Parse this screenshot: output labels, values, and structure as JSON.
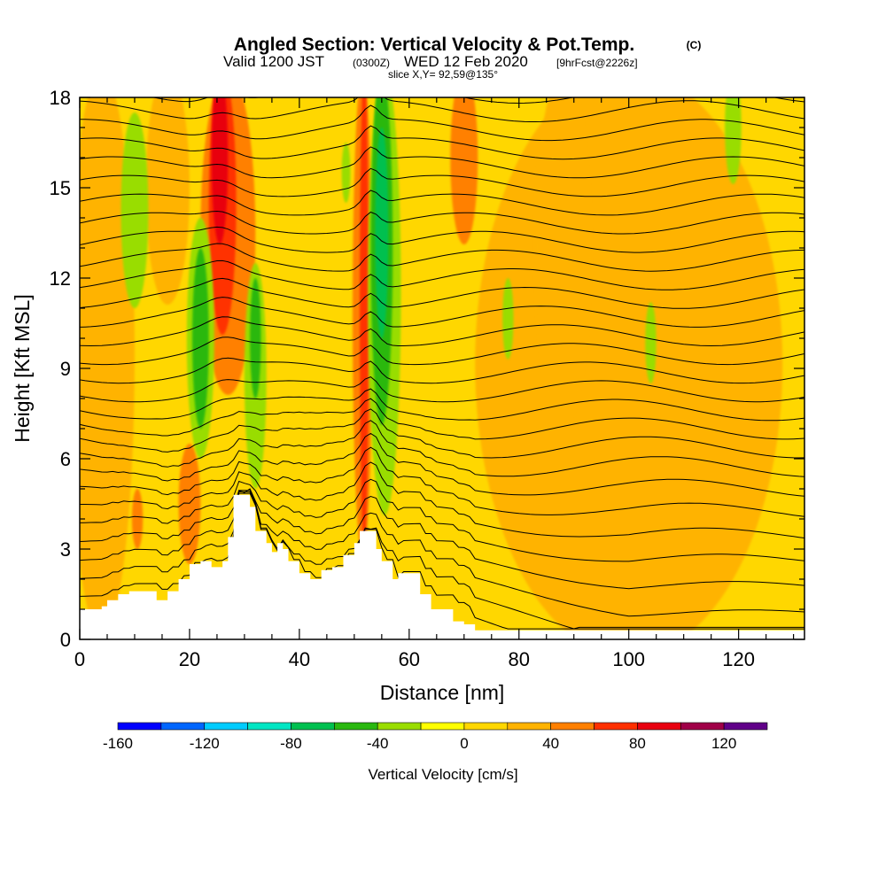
{
  "title": {
    "line1": "Angled Section: Vertical Velocity & Pot.Temp.",
    "copyright": "(C)",
    "line2_a": "Valid 1200 JST",
    "line2_b": "(0300Z)",
    "line2_c": "WED 12 Feb 2020",
    "line2_d": "[9hrFcst@2226z]",
    "line3": "slice X,Y= 92,59@135°"
  },
  "chart_data": {
    "type": "heatmap",
    "title": "Angled Section: Vertical Velocity & Pot.Temp.",
    "xlabel": "Distance [nm]",
    "ylabel": "Height [Kft MSL]",
    "xlim": [
      0,
      132
    ],
    "ylim": [
      0,
      18
    ],
    "x_ticks": [
      0,
      20,
      40,
      60,
      80,
      100,
      120
    ],
    "x_tick_labels": [
      "0",
      "20",
      "40",
      "60",
      "80",
      "100",
      "120"
    ],
    "y_ticks": [
      0,
      3,
      6,
      9,
      12,
      15,
      18
    ],
    "y_tick_labels": [
      "0",
      "3",
      "6",
      "9",
      "12",
      "15",
      "18"
    ],
    "background_value": 10,
    "vertical_velocity_features": [
      {
        "x": 100,
        "zmin": 0.3,
        "zmax": 18,
        "halfwidth": 28,
        "value": 30
      },
      {
        "x": 88,
        "zmin": 8,
        "zmax": 18,
        "halfwidth": 5,
        "value": 30
      },
      {
        "x": 4,
        "zmin": 1,
        "zmax": 18,
        "halfwidth": 6,
        "value": 30
      },
      {
        "x": 16,
        "zmin": 12,
        "zmax": 18,
        "halfwidth": 4,
        "value": 30
      },
      {
        "x": 27,
        "zmin": 9,
        "zmax": 18,
        "halfwidth": 5,
        "value": 50
      },
      {
        "x": 26,
        "zmin": 11,
        "zmax": 18,
        "halfwidth": 2.5,
        "value": 70
      },
      {
        "x": 25.5,
        "zmin": 14,
        "zmax": 18,
        "halfwidth": 1.5,
        "value": 90
      },
      {
        "x": 70,
        "zmin": 14,
        "zmax": 18,
        "halfwidth": 2.5,
        "value": 50
      },
      {
        "x": 20,
        "zmin": 2.5,
        "zmax": 6.5,
        "halfwidth": 2,
        "value": 50
      },
      {
        "x": 10.5,
        "zmin": 3,
        "zmax": 5,
        "halfwidth": 1,
        "value": 50
      },
      {
        "x": 51.5,
        "zmin": 3.6,
        "zmax": 18,
        "halfwidth": 1.8,
        "value": 50
      },
      {
        "x": 51.8,
        "zmin": 4,
        "zmax": 18,
        "halfwidth": 0.8,
        "value": 70
      },
      {
        "x": 10,
        "zmin": 11,
        "zmax": 17.5,
        "halfwidth": 2.5,
        "value": -30
      },
      {
        "x": 22,
        "zmin": 6,
        "zmax": 14,
        "halfwidth": 2.5,
        "value": -30
      },
      {
        "x": 22,
        "zmin": 7,
        "zmax": 13,
        "halfwidth": 1.5,
        "value": -50
      },
      {
        "x": 32,
        "zmin": 5,
        "zmax": 12.5,
        "halfwidth": 2,
        "value": -30
      },
      {
        "x": 32,
        "zmin": 8,
        "zmax": 12,
        "halfwidth": 1,
        "value": -50
      },
      {
        "x": 55.5,
        "zmin": 5,
        "zmax": 18,
        "halfwidth": 3,
        "value": -30
      },
      {
        "x": 55,
        "zmin": 8,
        "zmax": 18,
        "halfwidth": 2,
        "value": -50
      },
      {
        "x": 55,
        "zmin": 10,
        "zmax": 17,
        "halfwidth": 1.2,
        "value": -70
      },
      {
        "x": 48.5,
        "zmin": 14.5,
        "zmax": 16.5,
        "halfwidth": 0.8,
        "value": -30
      },
      {
        "x": 78,
        "zmin": 9.3,
        "zmax": 12,
        "halfwidth": 1,
        "value": -30
      },
      {
        "x": 104,
        "zmin": 8.5,
        "zmax": 11.2,
        "halfwidth": 1,
        "value": -30
      },
      {
        "x": 119,
        "zmin": 16,
        "zmax": 18,
        "halfwidth": 1.5,
        "value": -30
      }
    ],
    "terrain_kft": {
      "x": [
        0,
        4,
        5,
        7,
        9,
        13,
        14,
        16,
        18,
        20,
        22,
        24,
        26,
        27,
        28,
        30,
        31,
        32,
        34,
        35,
        36,
        37,
        38,
        40,
        42,
        44,
        46,
        48,
        50,
        51,
        53,
        54,
        55,
        57,
        58,
        60,
        62,
        64,
        67,
        68,
        70,
        72,
        132
      ],
      "z": [
        1.0,
        1.1,
        1.3,
        1.5,
        1.6,
        1.6,
        1.3,
        1.6,
        2.0,
        2.5,
        2.6,
        2.4,
        2.6,
        3.4,
        4.8,
        4.8,
        4.4,
        3.6,
        3.2,
        2.9,
        3.2,
        3.0,
        2.6,
        2.2,
        2.0,
        2.3,
        2.4,
        2.8,
        3.2,
        3.6,
        3.6,
        3.0,
        2.6,
        2.0,
        2.2,
        2.2,
        1.5,
        1.0,
        1.0,
        0.6,
        0.5,
        0.3,
        0.3
      ]
    },
    "contours": "potential temperature isentropes"
  },
  "colorbar": {
    "title": "Vertical Velocity [cm/s]",
    "bounds": [
      -160,
      140
    ],
    "step": 20,
    "colors": [
      "#0000ff",
      "#0066ff",
      "#00ccff",
      "#00e6c3",
      "#00c050",
      "#2ab810",
      "#99dd00",
      "#ffff00",
      "#ffd700",
      "#ffb300",
      "#ff8000",
      "#ff3000",
      "#e80010",
      "#a00048",
      "#600088"
    ],
    "tick_values": [
      -160,
      -120,
      -80,
      -40,
      0,
      40,
      80,
      120
    ],
    "tick_labels": [
      "-160",
      "-120",
      "-80",
      "-40",
      "0",
      "40",
      "80",
      "120"
    ]
  }
}
